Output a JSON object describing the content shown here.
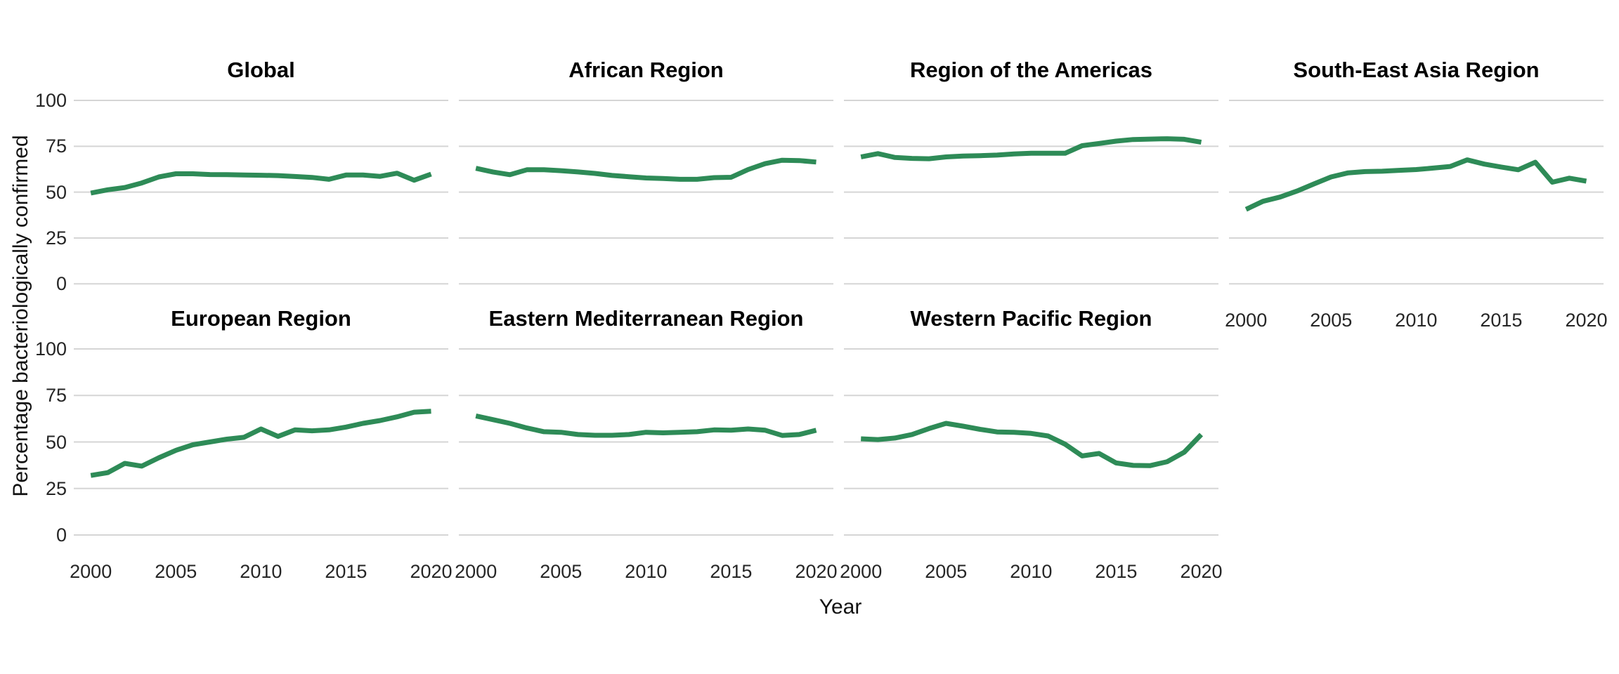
{
  "figure": {
    "y_axis_title": "Percentage bacteriologically confirmed",
    "x_axis_title": "Year",
    "line_color": "#2e8b57",
    "gridline_color": "#d5d5d5",
    "y_tick_labels": [
      "100",
      "75",
      "50",
      "25",
      "0"
    ],
    "x_tick_labels": [
      "2000",
      "2005",
      "2010",
      "2015",
      "2020"
    ]
  },
  "chart_data": {
    "type": "line",
    "title": "",
    "xlabel": "Year",
    "ylabel": "Percentage bacteriologically confirmed",
    "x": [
      2000,
      2001,
      2002,
      2003,
      2004,
      2005,
      2006,
      2007,
      2008,
      2009,
      2010,
      2011,
      2012,
      2013,
      2014,
      2015,
      2016,
      2017,
      2018,
      2019,
      2020
    ],
    "x_ticks": [
      2000,
      2005,
      2010,
      2015,
      2020
    ],
    "y_ticks": [
      100,
      75,
      50,
      25,
      0
    ],
    "ylim": [
      0,
      100
    ],
    "grid": "horizontal-only",
    "legend": "none",
    "layout": "facet-grid 2 rows x 4 columns, last bottom cell empty",
    "facets": [
      {
        "name": "Global",
        "values": [
          49.5,
          51.3,
          52.5,
          55.0,
          58.3,
          60.0,
          60.0,
          59.6,
          59.5,
          59.3,
          59.2,
          59.0,
          58.5,
          58.0,
          57.0,
          59.3,
          59.3,
          58.6,
          60.3,
          56.5,
          59.8
        ]
      },
      {
        "name": "African Region",
        "values": [
          63.0,
          61.0,
          59.5,
          62.2,
          62.2,
          61.7,
          61.0,
          60.2,
          59.1,
          58.4,
          57.7,
          57.4,
          57.0,
          57.0,
          57.9,
          58.1,
          62.3,
          65.5,
          67.4,
          67.2,
          66.4
        ]
      },
      {
        "name": "Region of the Americas",
        "values": [
          69.2,
          71.0,
          68.9,
          68.4,
          68.2,
          69.2,
          69.7,
          69.9,
          70.2,
          70.8,
          71.2,
          71.2,
          71.2,
          75.3,
          76.5,
          77.8,
          78.7,
          78.9,
          79.1,
          78.8,
          77.2
        ]
      },
      {
        "name": "South-East Asia Region",
        "values": [
          40.6,
          45.0,
          47.3,
          50.6,
          54.5,
          58.3,
          60.5,
          61.2,
          61.4,
          61.9,
          62.3,
          63.1,
          64.0,
          67.6,
          65.3,
          63.7,
          62.2,
          66.3,
          55.4,
          57.6,
          56.0
        ]
      },
      {
        "name": "European Region",
        "values": [
          32.0,
          33.5,
          38.5,
          37.0,
          41.5,
          45.5,
          48.5,
          50.0,
          51.5,
          52.5,
          57.0,
          53.0,
          56.5,
          56.0,
          56.5,
          58.0,
          60.0,
          61.5,
          63.5,
          66.0,
          66.5
        ]
      },
      {
        "name": "Eastern Mediterranean Region",
        "values": [
          64.0,
          62.0,
          60.0,
          57.5,
          55.5,
          55.2,
          54.0,
          53.6,
          53.6,
          54.0,
          55.2,
          54.9,
          55.2,
          55.5,
          56.5,
          56.3,
          57.0,
          56.3,
          53.5,
          54.0,
          56.3
        ]
      },
      {
        "name": "Western Pacific Region",
        "values": [
          51.7,
          51.3,
          52.1,
          54.0,
          57.2,
          60.0,
          58.5,
          56.8,
          55.4,
          55.2,
          54.6,
          53.2,
          48.8,
          42.5,
          43.8,
          38.7,
          37.4,
          37.3,
          39.4,
          44.5,
          54.0
        ]
      }
    ]
  }
}
